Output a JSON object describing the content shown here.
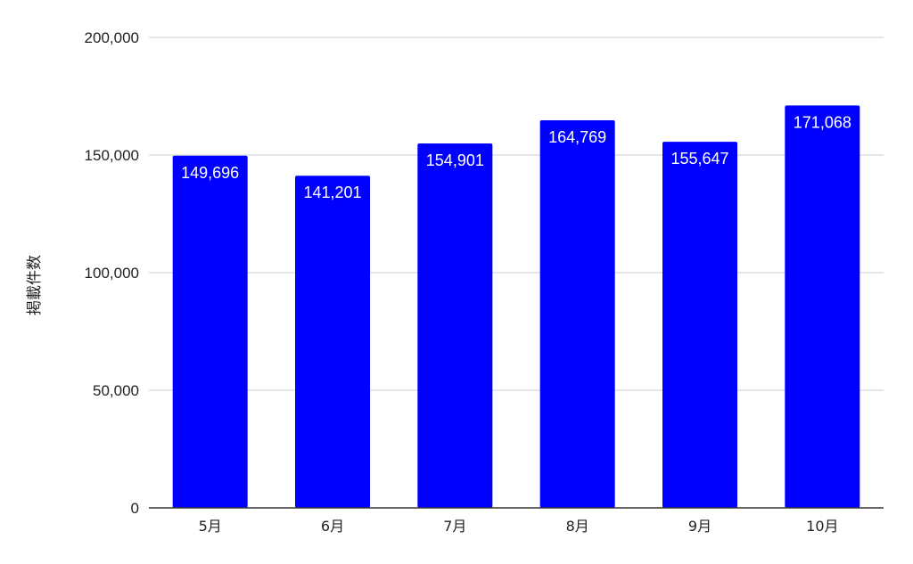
{
  "chart_data": {
    "type": "bar",
    "categories": [
      "5月",
      "6月",
      "7月",
      "8月",
      "9月",
      "10月"
    ],
    "values": [
      149696,
      141201,
      154901,
      164769,
      155647,
      171068
    ],
    "value_labels": [
      "149,696",
      "141,201",
      "154,901",
      "164,769",
      "155,647",
      "171,068"
    ],
    "title": "",
    "xlabel": "",
    "ylabel": "掲載件数",
    "ylim": [
      0,
      200000
    ],
    "yticks": [
      0,
      50000,
      100000,
      150000,
      200000
    ],
    "ytick_labels": [
      "0",
      "50,000",
      "100,000",
      "150,000",
      "200,000"
    ],
    "grid": true,
    "bar_color": "#0000ff",
    "data_label_color": "#ffffff",
    "grid_color": "#cccccc",
    "axis_color": "#333333"
  }
}
